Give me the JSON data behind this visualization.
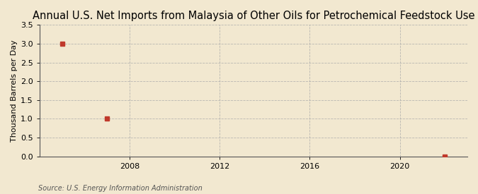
{
  "title": "Annual U.S. Net Imports from Malaysia of Other Oils for Petrochemical Feedstock Use",
  "ylabel": "Thousand Barrels per Day",
  "source": "Source: U.S. Energy Information Administration",
  "background_color": "#f2e8d0",
  "plot_background_color": "#f2e8d0",
  "data_x": [
    2005,
    2007,
    2022
  ],
  "data_y": [
    3.0,
    1.0,
    0.0
  ],
  "marker_color": "#c0392b",
  "marker_size": 4,
  "xlim": [
    2004,
    2023
  ],
  "ylim": [
    0.0,
    3.5
  ],
  "yticks": [
    0.0,
    0.5,
    1.0,
    1.5,
    2.0,
    2.5,
    3.0,
    3.5
  ],
  "xticks": [
    2008,
    2012,
    2016,
    2020
  ],
  "grid_color": "#aaaaaa",
  "title_fontsize": 10.5,
  "axis_fontsize": 8,
  "tick_fontsize": 8,
  "source_fontsize": 7
}
